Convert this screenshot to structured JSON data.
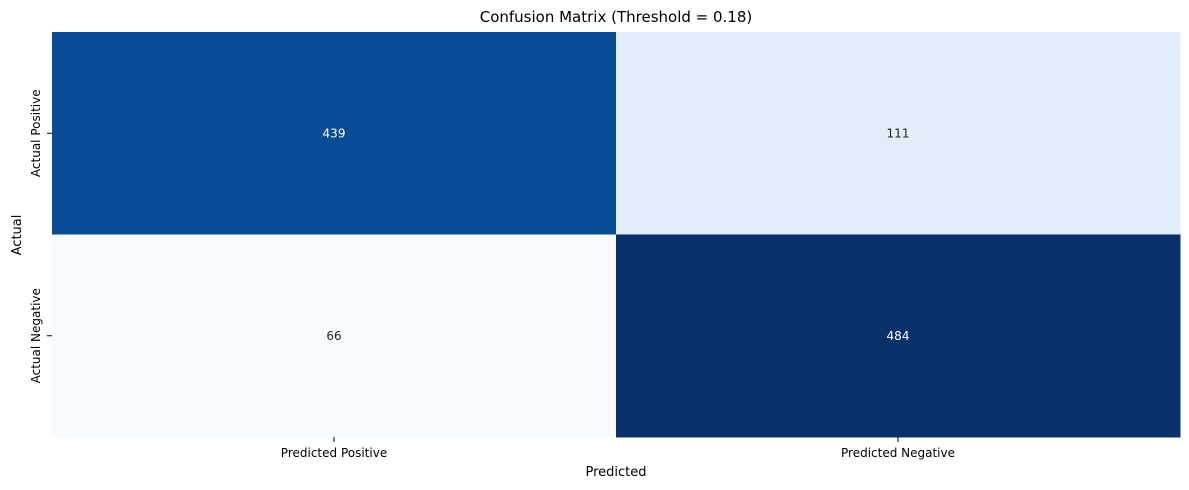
{
  "chart_data": {
    "type": "heatmap",
    "title": "Confusion Matrix (Threshold = 0.18)",
    "xlabel": "Predicted",
    "ylabel": "Actual",
    "x_categories": [
      "Predicted Positive",
      "Predicted Negative"
    ],
    "y_categories": [
      "Actual Positive",
      "Actual Negative"
    ],
    "values": [
      [
        439,
        111
      ],
      [
        66,
        484
      ]
    ],
    "colormap": "Blues",
    "value_range": [
      66,
      484
    ],
    "colors": {
      "low": "#f7fbff",
      "high": "#08306b",
      "text_on_dark": "#ffffff",
      "text_on_light": "#262626"
    },
    "colorbar": false,
    "grid": false
  }
}
